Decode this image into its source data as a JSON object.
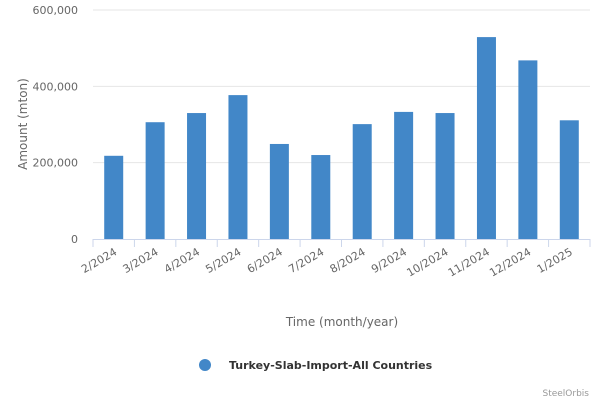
{
  "chart_data": {
    "type": "bar",
    "title": "",
    "xlabel": "Time (month/year)",
    "ylabel": "Amount (mton)",
    "categories": [
      "2/2024",
      "3/2024",
      "4/2024",
      "5/2024",
      "6/2024",
      "7/2024",
      "8/2024",
      "9/2024",
      "10/2024",
      "11/2024",
      "12/2024",
      "1/2025"
    ],
    "series": [
      {
        "name": "Turkey-Slab-Import-All Countries",
        "color": "#4287c8",
        "values": [
          218000,
          306000,
          330000,
          377000,
          249000,
          220000,
          301000,
          333000,
          330000,
          529000,
          468000,
          311000
        ]
      }
    ],
    "ylim": [
      0,
      600000
    ],
    "yticks": [
      0,
      200000,
      400000,
      600000
    ],
    "ytick_labels": [
      "0",
      "200,000",
      "400,000",
      "600,000"
    ],
    "grid": true,
    "legend_position": "bottom-center"
  },
  "credit": "SteelOrbis"
}
